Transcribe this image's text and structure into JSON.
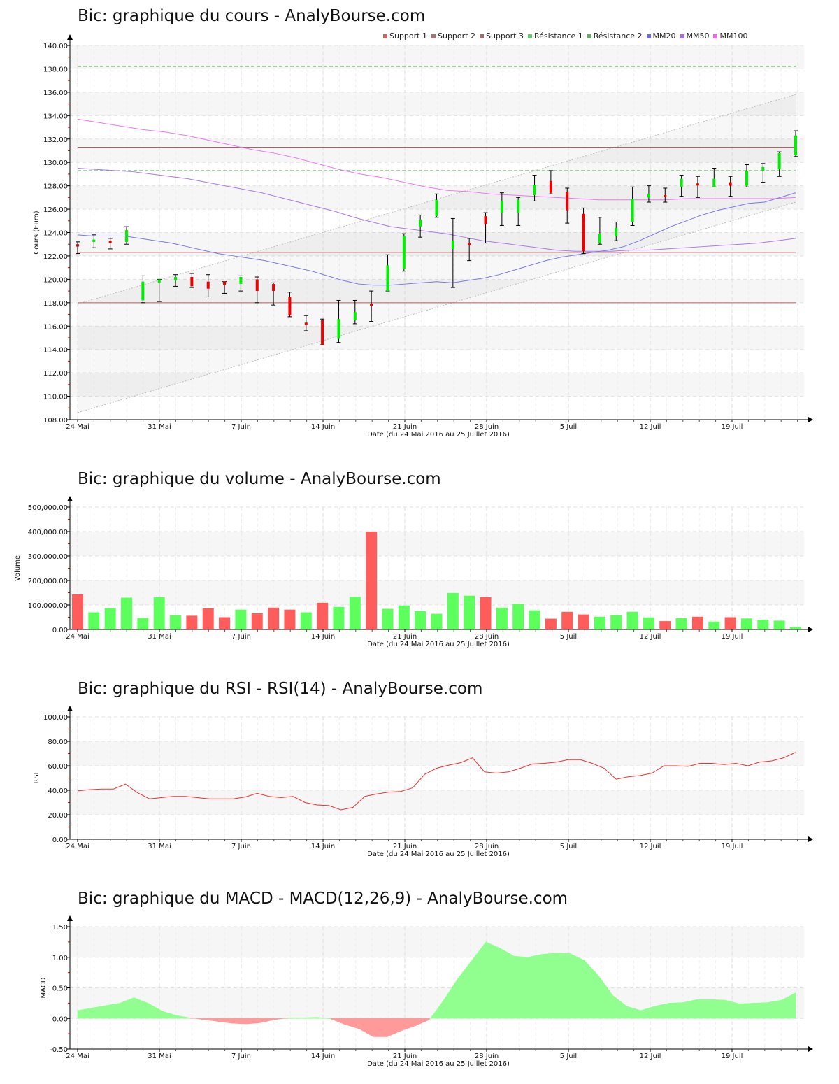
{
  "charts": {
    "price": {
      "title": "Bic: graphique du cours - AnalyBourse.com",
      "ylabel": "Cours (Euro)"
    },
    "volume": {
      "title": "Bic: graphique du volume - AnalyBourse.com",
      "ylabel": "Volume"
    },
    "rsi": {
      "title": "Bic: graphique du RSI - RSI(14) - AnalyBourse.com",
      "ylabel": "RSI"
    },
    "macd": {
      "title": "Bic: graphique du MACD - MACD(12,26,9) - AnalyBourse.com",
      "ylabel": "MACD"
    }
  },
  "xaxis": {
    "label": "Date (du 24 Mai 2016 au 25 Juillet 2016)",
    "ticks": [
      "24 Mai",
      "31 Mai",
      "7 Juin",
      "14 Juin",
      "21 Juin",
      "28 Juin",
      "5 Juil",
      "12 Juil",
      "19 Juil"
    ]
  },
  "legend": [
    {
      "label": "Support 1",
      "color": "#cc6666"
    },
    {
      "label": "Support 2",
      "color": "#b07070"
    },
    {
      "label": "Support 3",
      "color": "#a07070"
    },
    {
      "label": "Résistance 1",
      "color": "#66cc66"
    },
    {
      "label": "Résistance 2",
      "color": "#66aa66"
    },
    {
      "label": "MM20",
      "color": "#6666ee"
    },
    {
      "label": "MM50",
      "color": "#aa66ee"
    },
    {
      "label": "MM100",
      "color": "#ee66ee"
    }
  ],
  "chart_data": [
    {
      "type": "candlestick",
      "title": "Bic: graphique du cours - AnalyBourse.com",
      "xlabel": "Date (du 24 Mai 2016 au 25 Juillet 2016)",
      "ylabel": "Cours (Euro)",
      "ylim": [
        108,
        140
      ],
      "yticks": [
        "108.00",
        "110.00",
        "112.00",
        "114.00",
        "116.00",
        "118.00",
        "120.00",
        "122.00",
        "124.00",
        "126.00",
        "128.00",
        "130.00",
        "132.00",
        "134.00",
        "136.00",
        "138.00",
        "140.00"
      ],
      "candles": [
        {
          "o": 123.0,
          "c": 122.8,
          "h": 123.2,
          "l": 122.2
        },
        {
          "o": 123.2,
          "c": 123.4,
          "h": 123.8,
          "l": 122.7
        },
        {
          "o": 123.3,
          "c": 123.1,
          "h": 123.5,
          "l": 122.6
        },
        {
          "o": 123.2,
          "c": 124.2,
          "h": 124.5,
          "l": 123.0
        },
        {
          "o": 118.2,
          "c": 119.8,
          "h": 120.3,
          "l": 118.0
        },
        {
          "o": 119.7,
          "c": 120.0,
          "h": 120.0,
          "l": 118.1
        },
        {
          "o": 119.9,
          "c": 120.2,
          "h": 120.4,
          "l": 119.4
        },
        {
          "o": 120.2,
          "c": 119.4,
          "h": 120.5,
          "l": 119.3
        },
        {
          "o": 119.8,
          "c": 119.2,
          "h": 120.4,
          "l": 118.5
        },
        {
          "o": 119.8,
          "c": 119.5,
          "h": 119.8,
          "l": 118.8
        },
        {
          "o": 119.6,
          "c": 120.2,
          "h": 120.3,
          "l": 119.0
        },
        {
          "o": 120.0,
          "c": 119.0,
          "h": 120.2,
          "l": 118.0
        },
        {
          "o": 119.6,
          "c": 119.0,
          "h": 119.7,
          "l": 117.8
        },
        {
          "o": 118.5,
          "c": 116.9,
          "h": 118.9,
          "l": 116.8
        },
        {
          "o": 116.3,
          "c": 116.1,
          "h": 116.9,
          "l": 115.6
        },
        {
          "o": 116.5,
          "c": 114.4,
          "h": 116.6,
          "l": 114.4
        },
        {
          "o": 114.9,
          "c": 116.6,
          "h": 118.2,
          "l": 114.6
        },
        {
          "o": 116.5,
          "c": 117.2,
          "h": 118.2,
          "l": 116.2
        },
        {
          "o": 117.9,
          "c": 117.8,
          "h": 119.0,
          "l": 116.4
        },
        {
          "o": 119.0,
          "c": 121.2,
          "h": 122.1,
          "l": 119.0
        },
        {
          "o": 120.9,
          "c": 123.7,
          "h": 123.9,
          "l": 120.7
        },
        {
          "o": 124.5,
          "c": 125.1,
          "h": 125.5,
          "l": 123.6
        },
        {
          "o": 125.4,
          "c": 126.8,
          "h": 127.3,
          "l": 125.3
        },
        {
          "o": 122.6,
          "c": 123.3,
          "h": 125.2,
          "l": 119.3
        },
        {
          "o": 123.1,
          "c": 122.9,
          "h": 123.5,
          "l": 121.6
        },
        {
          "o": 125.4,
          "c": 124.7,
          "h": 125.7,
          "l": 123.1
        },
        {
          "o": 125.7,
          "c": 126.7,
          "h": 127.4,
          "l": 124.6
        },
        {
          "o": 125.7,
          "c": 126.8,
          "h": 127.0,
          "l": 124.6
        },
        {
          "o": 127.2,
          "c": 128.1,
          "h": 128.9,
          "l": 126.7
        },
        {
          "o": 128.4,
          "c": 127.4,
          "h": 129.3,
          "l": 127.3
        },
        {
          "o": 127.5,
          "c": 125.9,
          "h": 127.8,
          "l": 124.8
        },
        {
          "o": 125.6,
          "c": 122.4,
          "h": 126.1,
          "l": 122.2
        },
        {
          "o": 123.1,
          "c": 123.9,
          "h": 125.3,
          "l": 123.0
        },
        {
          "o": 123.7,
          "c": 124.4,
          "h": 124.9,
          "l": 123.3
        },
        {
          "o": 124.9,
          "c": 126.9,
          "h": 127.9,
          "l": 124.6
        },
        {
          "o": 127.0,
          "c": 127.3,
          "h": 128.0,
          "l": 126.6
        },
        {
          "o": 127.2,
          "c": 127.1,
          "h": 127.8,
          "l": 126.6
        },
        {
          "o": 127.9,
          "c": 128.6,
          "h": 128.9,
          "l": 127.1
        },
        {
          "o": 128.2,
          "c": 128.1,
          "h": 128.8,
          "l": 127.0
        },
        {
          "o": 127.9,
          "c": 128.6,
          "h": 129.5,
          "l": 127.9
        },
        {
          "o": 128.3,
          "c": 128.0,
          "h": 128.8,
          "l": 127.1
        },
        {
          "o": 128.0,
          "c": 129.3,
          "h": 129.8,
          "l": 127.9
        },
        {
          "o": 129.3,
          "c": 129.6,
          "h": 129.9,
          "l": 128.3
        },
        {
          "o": 129.4,
          "c": 130.8,
          "h": 130.9,
          "l": 128.8
        },
        {
          "o": 130.6,
          "c": 132.3,
          "h": 132.7,
          "l": 130.5
        }
      ],
      "lines": {
        "support_1": 118.0,
        "support_2": 122.3,
        "support_3": 131.3,
        "resistance_1": 129.3,
        "resistance_2": 138.2
      },
      "channel": {
        "upper": [
          117.9,
          135.8
        ],
        "lower": [
          108.6,
          126.6
        ]
      },
      "mm20": [
        123.8,
        123.7,
        123.7,
        123.7,
        123.5,
        123.3,
        123.1,
        122.8,
        122.5,
        122.2,
        122.0,
        121.8,
        121.6,
        121.3,
        121.0,
        120.7,
        120.3,
        119.9,
        119.6,
        119.5,
        119.5,
        119.6,
        119.7,
        119.8,
        119.7,
        119.9,
        120.1,
        120.4,
        120.8,
        121.2,
        121.6,
        121.9,
        122.1,
        122.3,
        122.5,
        122.8,
        123.3,
        123.9,
        124.5,
        125.0,
        125.5,
        125.9,
        126.2,
        126.5,
        126.6,
        127.0,
        127.4
      ],
      "mm50": [
        129.5,
        129.4,
        129.3,
        129.2,
        129.0,
        128.8,
        128.6,
        128.3,
        128.0,
        127.7,
        127.4,
        127.0,
        126.6,
        126.2,
        125.8,
        125.3,
        124.9,
        124.5,
        124.3,
        124.1,
        123.9,
        123.6,
        123.3,
        123.1,
        122.9,
        122.7,
        122.5,
        122.4,
        122.4,
        122.4,
        122.5,
        122.5,
        122.6,
        122.7,
        122.8,
        122.9,
        123.0,
        123.1,
        123.3,
        123.5
      ],
      "mm100": [
        133.7,
        133.4,
        133.1,
        132.8,
        132.6,
        132.3,
        131.9,
        131.5,
        131.1,
        130.8,
        130.4,
        129.9,
        129.4,
        129.0,
        128.7,
        128.3,
        127.9,
        127.6,
        127.5,
        127.3,
        127.2,
        127.1,
        127.0,
        126.9,
        126.8,
        126.8,
        126.8,
        126.8,
        126.9,
        126.9,
        126.9,
        126.9,
        126.9,
        127.0
      ]
    },
    {
      "type": "bar",
      "title": "Bic: graphique du volume - AnalyBourse.com",
      "xlabel": "Date (du 24 Mai 2016 au 25 Juillet 2016)",
      "ylabel": "Volume",
      "ylim": [
        0,
        500000
      ],
      "yticks": [
        "0.00",
        "100,000.00",
        "200,000.00",
        "300,000.00",
        "400,000.00",
        "500,000.00"
      ],
      "values": [
        143000,
        70000,
        87000,
        130000,
        47000,
        132000,
        58000,
        56000,
        86000,
        50000,
        81000,
        66000,
        89000,
        81000,
        70000,
        109000,
        92000,
        133000,
        400000,
        84000,
        98000,
        75000,
        64000,
        149000,
        138000,
        132000,
        89000,
        104000,
        78000,
        44000,
        72000,
        61000,
        52000,
        58000,
        72000,
        49000,
        34000,
        46000,
        52000,
        32000,
        50000,
        45000,
        40000,
        36000,
        10000
      ],
      "colors": [
        "r",
        "g",
        "g",
        "g",
        "g",
        "g",
        "g",
        "r",
        "r",
        "r",
        "g",
        "r",
        "r",
        "r",
        "g",
        "r",
        "g",
        "g",
        "r",
        "g",
        "g",
        "g",
        "g",
        "g",
        "g",
        "r",
        "g",
        "g",
        "g",
        "r",
        "r",
        "r",
        "g",
        "g",
        "g",
        "g",
        "r",
        "g",
        "r",
        "g",
        "r",
        "g",
        "g",
        "g",
        "g"
      ]
    },
    {
      "type": "line",
      "title": "Bic: graphique du RSI - RSI(14) - AnalyBourse.com",
      "xlabel": "Date (du 24 Mai 2016 au 25 Juillet 2016)",
      "ylabel": "RSI",
      "ylim": [
        0,
        100
      ],
      "yticks": [
        "0.00",
        "20.00",
        "40.00",
        "60.00",
        "80.00",
        "100.00"
      ],
      "reference_line": 50,
      "values": [
        39.5,
        40.5,
        41,
        41,
        45,
        38,
        33,
        34,
        35,
        35,
        34,
        33,
        33,
        33,
        34.5,
        37.5,
        35,
        34,
        35,
        30,
        28,
        27.5,
        24,
        26,
        35,
        37,
        38.5,
        39,
        42,
        53,
        58,
        60.5,
        62.5,
        66.5,
        55,
        54,
        55,
        58,
        61.5,
        62,
        63,
        65,
        65,
        62,
        58,
        49,
        51,
        52,
        54,
        60,
        60,
        59.5,
        62,
        62,
        61,
        62,
        60,
        63,
        64,
        66.5,
        71
      ]
    },
    {
      "type": "area",
      "title": "Bic: graphique du MACD - MACD(12,26,9) - AnalyBourse.com",
      "xlabel": "Date (du 24 Mai 2016 au 25 Juillet 2016)",
      "ylabel": "MACD",
      "ylim": [
        -0.5,
        1.5
      ],
      "yticks": [
        "-0.50",
        "0.00",
        "0.50",
        "1.00",
        "1.50"
      ],
      "values": [
        0.13,
        0.17,
        0.21,
        0.25,
        0.34,
        0.25,
        0.12,
        0.05,
        0.01,
        -0.02,
        -0.05,
        -0.08,
        -0.09,
        -0.07,
        -0.02,
        0.01,
        0.01,
        0.02,
        -0.01,
        -0.1,
        -0.17,
        -0.3,
        -0.3,
        -0.2,
        -0.12,
        -0.02,
        0.3,
        0.65,
        0.95,
        1.25,
        1.15,
        1.02,
        1.0,
        1.05,
        1.07,
        1.06,
        0.95,
        0.7,
        0.38,
        0.2,
        0.13,
        0.2,
        0.25,
        0.26,
        0.31,
        0.31,
        0.3,
        0.24,
        0.25,
        0.26,
        0.3,
        0.42
      ]
    }
  ]
}
